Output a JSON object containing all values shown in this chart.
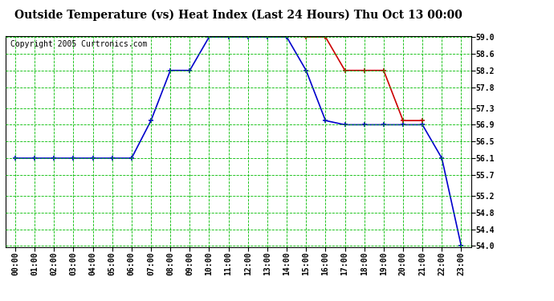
{
  "title": "Outside Temperature (vs) Heat Index (Last 24 Hours) Thu Oct 13 00:00",
  "copyright": "Copyright 2005 Curtronics.com",
  "bg_color": "#ffffff",
  "plot_bg_color": "#ffffff",
  "grid_color": "#00bb00",
  "blue_line_color": "#0000cc",
  "red_line_color": "#cc0000",
  "blue_x": [
    0,
    1,
    2,
    3,
    4,
    5,
    6,
    7,
    8,
    9,
    10,
    11,
    12,
    13,
    14,
    15,
    16,
    17,
    18,
    19,
    20,
    21,
    22,
    23
  ],
  "blue_y": [
    56.1,
    56.1,
    56.1,
    56.1,
    56.1,
    56.1,
    56.1,
    57.0,
    58.2,
    58.2,
    59.0,
    59.0,
    59.0,
    59.0,
    59.0,
    58.2,
    57.0,
    56.9,
    56.9,
    56.9,
    56.9,
    56.9,
    56.1,
    54.0
  ],
  "red_x": [
    15,
    16,
    17,
    18,
    19,
    20,
    21
  ],
  "red_y": [
    59.0,
    59.0,
    58.2,
    58.2,
    58.2,
    57.0,
    57.0
  ],
  "ylim_min": 54.0,
  "ylim_max": 59.0,
  "yticks": [
    54.0,
    54.4,
    54.8,
    55.2,
    55.7,
    56.1,
    56.5,
    56.9,
    57.3,
    57.8,
    58.2,
    58.6,
    59.0
  ],
  "xtick_labels": [
    "00:00",
    "01:00",
    "02:00",
    "03:00",
    "04:00",
    "05:00",
    "06:00",
    "07:00",
    "08:00",
    "09:00",
    "10:00",
    "11:00",
    "12:00",
    "13:00",
    "14:00",
    "15:00",
    "16:00",
    "17:00",
    "18:00",
    "19:00",
    "20:00",
    "21:00",
    "22:00",
    "23:00"
  ],
  "marker": "+",
  "marker_size": 5,
  "linewidth": 1.2,
  "title_fontsize": 10,
  "tick_fontsize": 7,
  "copyright_fontsize": 7
}
